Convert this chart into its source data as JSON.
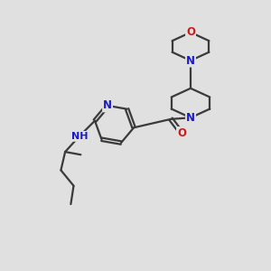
{
  "bg_color": "#e0e0e0",
  "bond_color": "#3a3a3a",
  "nitrogen_color": "#1a1acc",
  "oxygen_color": "#cc1a1a",
  "line_width": 1.6,
  "font_size": 8.5,
  "figsize": [
    3.0,
    3.0
  ],
  "dpi": 100,
  "xlim": [
    0.0,
    8.5
  ],
  "ylim": [
    0.0,
    9.5
  ]
}
